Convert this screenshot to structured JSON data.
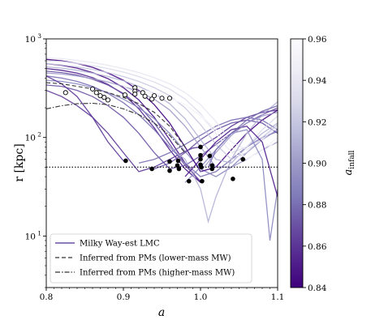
{
  "chart_data": {
    "type": "line",
    "xlabel": "a",
    "ylabel": "r [kpc]",
    "colorbar_label": "a_infall",
    "colorbar_label_main": "a",
    "colorbar_label_sub": "infall",
    "xlim": [
      0.8,
      1.1
    ],
    "ylim": [
      3,
      1000
    ],
    "yscale": "log",
    "x_ticks": [
      0.8,
      0.9,
      1.0,
      1.1
    ],
    "x_tick_labels": [
      "0.8",
      "0.9",
      "1.0",
      "1.1"
    ],
    "y_ticks": [
      10,
      100,
      1000
    ],
    "y_tick_labels": [
      "10",
      "10",
      "10"
    ],
    "y_tick_exponents": [
      "1",
      "2",
      "3"
    ],
    "colorbar_range": [
      0.84,
      0.96
    ],
    "colorbar_ticks": [
      0.84,
      0.86,
      0.88,
      0.9,
      0.92,
      0.94,
      0.96
    ],
    "colorbar_tick_labels": [
      "0.84",
      "0.86",
      "0.88",
      "0.90",
      "0.92",
      "0.94",
      "0.96"
    ],
    "colormap": [
      "#3f007d",
      "#54278f",
      "#6a51a3",
      "#807dba",
      "#9e9ac8",
      "#bcbddc",
      "#dadaeb",
      "#efedf5",
      "#fcfbfd"
    ],
    "reference_line_y": 50,
    "legend": {
      "placement": "lower-left",
      "entries": [
        {
          "label": "Milky Way-est LMC",
          "style": "solid",
          "color": "#6a51a3"
        },
        {
          "label": "Inferred from PMs (lower-mass MW)",
          "style": "dashed",
          "color": "#333333"
        },
        {
          "label": "Inferred from PMs (higher-mass MW)",
          "style": "dashdot",
          "color": "#333333"
        }
      ]
    },
    "series": [
      {
        "a_infall": 0.845,
        "x": [
          0.8,
          0.82,
          0.84,
          0.86,
          0.88,
          0.9,
          0.92,
          0.94,
          0.96,
          0.98,
          1.0
        ],
        "y": [
          560,
          540,
          505,
          455,
          395,
          320,
          240,
          160,
          95,
          55,
          35
        ]
      },
      {
        "a_infall": 0.85,
        "x": [
          0.8,
          0.82,
          0.84,
          0.86,
          0.88,
          0.9,
          0.92,
          0.94,
          0.96,
          0.98,
          1.0
        ],
        "y": [
          500,
          480,
          450,
          405,
          345,
          275,
          195,
          125,
          75,
          48,
          35
        ]
      },
      {
        "a_infall": 0.86,
        "x": [
          0.8,
          0.82,
          0.84,
          0.86,
          0.88,
          0.9,
          0.92,
          0.94,
          0.96,
          0.98,
          0.99,
          1.0,
          1.02,
          1.04,
          1.06,
          1.08,
          1.1
        ],
        "y": [
          300,
          260,
          210,
          160,
          110,
          70,
          45,
          50,
          60,
          72,
          78,
          80,
          100,
          130,
          160,
          180,
          190
        ]
      },
      {
        "a_infall": 0.87,
        "x": [
          0.8,
          0.82,
          0.84,
          0.86,
          0.88,
          0.9,
          0.92,
          0.94,
          0.96,
          0.98,
          1.0
        ],
        "y": [
          470,
          455,
          430,
          390,
          340,
          280,
          210,
          140,
          85,
          52,
          36
        ]
      },
      {
        "a_infall": 0.87,
        "x": [
          0.8,
          0.82,
          0.84,
          0.86,
          0.88,
          0.9,
          0.92,
          0.94,
          0.96,
          0.98,
          1.0,
          1.02,
          1.04,
          1.06,
          1.08,
          1.1
        ],
        "y": [
          340,
          330,
          300,
          260,
          210,
          160,
          110,
          70,
          48,
          52,
          65,
          85,
          110,
          140,
          170,
          200
        ]
      },
      {
        "a_infall": 0.88,
        "x": [
          0.8,
          0.82,
          0.84,
          0.86,
          0.88,
          0.9,
          0.92,
          0.94,
          0.96,
          0.98,
          1.0,
          1.02,
          1.04,
          1.06,
          1.08,
          1.1
        ],
        "y": [
          420,
          400,
          370,
          330,
          280,
          225,
          170,
          120,
          80,
          55,
          40,
          45,
          60,
          80,
          100,
          115
        ]
      },
      {
        "a_infall": 0.89,
        "x": [
          0.8,
          0.82,
          0.84,
          0.86,
          0.88,
          0.9,
          0.92,
          0.94,
          0.96,
          0.98,
          1.0,
          1.02,
          1.04,
          1.06,
          1.08,
          1.1
        ],
        "y": [
          380,
          370,
          350,
          320,
          285,
          245,
          200,
          155,
          110,
          72,
          48,
          40,
          50,
          70,
          95,
          120
        ]
      },
      {
        "a_infall": 0.84,
        "x": [
          0.8,
          0.82,
          0.84,
          0.86,
          0.88,
          0.9,
          0.92,
          0.94,
          0.96,
          0.98,
          1.0,
          1.02,
          1.04,
          1.06,
          1.08,
          1.1
        ],
        "y": [
          620,
          600,
          565,
          515,
          450,
          380,
          300,
          215,
          140,
          80,
          45,
          50,
          75,
          110,
          150,
          190
        ]
      },
      {
        "a_infall": 0.86,
        "x": [
          0.8,
          0.82,
          0.84,
          0.86,
          0.88,
          0.9
        ],
        "y": [
          420,
          350,
          260,
          160,
          90,
          58
        ]
      },
      {
        "a_infall": 0.88,
        "x": [
          0.92,
          0.94,
          0.96,
          0.98,
          1.0,
          1.02,
          1.04,
          1.06,
          1.08,
          1.1
        ],
        "y": [
          55,
          60,
          70,
          85,
          105,
          130,
          150,
          160,
          150,
          120
        ]
      },
      {
        "a_infall": 0.87,
        "x": [
          0.94,
          0.96,
          0.98,
          1.0,
          1.02,
          1.04,
          1.06,
          1.08,
          1.1
        ],
        "y": [
          48,
          55,
          70,
          95,
          120,
          140,
          150,
          140,
          110
        ]
      },
      {
        "a_infall": 0.9,
        "x": [
          0.8,
          0.82,
          0.84,
          0.86,
          0.88,
          0.9,
          0.92,
          0.94,
          0.96,
          0.98,
          1.0,
          1.02,
          1.04,
          1.06,
          1.08,
          1.1
        ],
        "y": [
          450,
          440,
          420,
          395,
          365,
          330,
          290,
          245,
          190,
          130,
          80,
          50,
          50,
          60,
          75,
          90
        ]
      },
      {
        "a_infall": 0.91,
        "x": [
          0.8,
          0.82,
          0.84,
          0.86,
          0.88,
          0.9,
          0.92,
          0.94,
          0.96,
          0.98,
          1.0,
          1.02,
          1.04,
          1.06,
          1.08,
          1.1
        ],
        "y": [
          520,
          505,
          480,
          450,
          415,
          375,
          330,
          280,
          220,
          155,
          95,
          60,
          55,
          80,
          110,
          140
        ]
      },
      {
        "a_infall": 0.92,
        "x": [
          0.8,
          0.82,
          0.84,
          0.86,
          0.88,
          0.9,
          0.92,
          0.94,
          0.96,
          0.98,
          1.0,
          1.02,
          1.04,
          1.06,
          1.08,
          1.1
        ],
        "y": [
          560,
          545,
          520,
          490,
          455,
          415,
          370,
          320,
          265,
          200,
          135,
          85,
          60,
          70,
          100,
          135
        ]
      },
      {
        "a_infall": 0.93,
        "x": [
          0.8,
          0.82,
          0.84,
          0.86,
          0.88,
          0.9,
          0.92,
          0.94,
          0.96,
          0.98,
          1.0,
          1.02,
          1.04,
          1.06,
          1.08,
          1.1
        ],
        "y": [
          600,
          590,
          565,
          535,
          500,
          460,
          415,
          365,
          310,
          245,
          175,
          110,
          70,
          80,
          120,
          165
        ]
      },
      {
        "a_infall": 0.94,
        "x": [
          0.8,
          0.82,
          0.84,
          0.86,
          0.88,
          0.9,
          0.92,
          0.94,
          0.96,
          0.98,
          1.0,
          1.02,
          1.04,
          1.06,
          1.08,
          1.1
        ],
        "y": [
          640,
          630,
          605,
          575,
          540,
          500,
          455,
          405,
          350,
          285,
          215,
          145,
          90,
          75,
          95,
          130
        ]
      },
      {
        "a_infall": 0.95,
        "x": [
          0.9,
          0.92,
          0.94,
          0.96,
          0.98,
          1.0,
          1.02,
          1.04,
          1.06,
          1.08,
          1.1
        ],
        "y": [
          330,
          310,
          285,
          255,
          215,
          165,
          110,
          70,
          60,
          75,
          100
        ]
      },
      {
        "a_infall": 0.955,
        "x": [
          0.92,
          0.94,
          0.96,
          0.98,
          1.0,
          1.02,
          1.04,
          1.06,
          1.08,
          1.1
        ],
        "y": [
          290,
          275,
          250,
          215,
          170,
          120,
          80,
          62,
          70,
          95
        ]
      },
      {
        "a_infall": 0.89,
        "x": [
          0.98,
          1.0,
          1.02,
          1.04,
          1.06,
          1.08,
          1.09,
          1.1
        ],
        "y": [
          35,
          50,
          75,
          110,
          120,
          60,
          9,
          30
        ]
      },
      {
        "a_infall": 0.91,
        "x": [
          0.96,
          0.98,
          1.0,
          1.01,
          1.02,
          1.04,
          1.06,
          1.08,
          1.1
        ],
        "y": [
          80,
          60,
          30,
          14,
          25,
          60,
          110,
          170,
          230
        ]
      },
      {
        "a_infall": 0.85,
        "x": [
          0.98,
          1.0,
          1.02,
          1.04,
          1.06,
          1.08,
          1.1
        ],
        "y": [
          40,
          60,
          90,
          120,
          130,
          90,
          25
        ]
      },
      {
        "a_infall": 0.9,
        "x": [
          1.0,
          1.02,
          1.04,
          1.06,
          1.08,
          1.1
        ],
        "y": [
          45,
          70,
          105,
          140,
          165,
          180
        ]
      },
      {
        "a_infall": 0.88,
        "x": [
          1.01,
          1.02,
          1.04,
          1.06,
          1.08,
          1.1
        ],
        "y": [
          50,
          75,
          110,
          150,
          185,
          210
        ]
      }
    ],
    "ref_dashed": {
      "x": [
        0.8,
        0.82,
        0.84,
        0.86,
        0.88,
        0.9,
        0.92,
        0.94,
        0.96,
        0.98
      ],
      "y": [
        360,
        350,
        330,
        310,
        285,
        255,
        220,
        180,
        130,
        80
      ]
    },
    "ref_dashdot": {
      "x": [
        0.8,
        0.82,
        0.84,
        0.86,
        0.88,
        0.9,
        0.92,
        0.94,
        0.96,
        0.98
      ],
      "y": [
        195,
        210,
        220,
        222,
        215,
        195,
        170,
        140,
        105,
        70
      ]
    },
    "open_markers": [
      {
        "x": 0.825,
        "y": 285
      },
      {
        "x": 0.86,
        "y": 310
      },
      {
        "x": 0.865,
        "y": 285
      },
      {
        "x": 0.87,
        "y": 265
      },
      {
        "x": 0.875,
        "y": 255
      },
      {
        "x": 0.88,
        "y": 240
      },
      {
        "x": 0.902,
        "y": 270
      },
      {
        "x": 0.915,
        "y": 320
      },
      {
        "x": 0.915,
        "y": 295
      },
      {
        "x": 0.915,
        "y": 275
      },
      {
        "x": 0.925,
        "y": 285
      },
      {
        "x": 0.928,
        "y": 262
      },
      {
        "x": 0.937,
        "y": 245
      },
      {
        "x": 0.94,
        "y": 265
      },
      {
        "x": 0.95,
        "y": 250
      },
      {
        "x": 0.96,
        "y": 250
      }
    ],
    "filled_markers": [
      {
        "x": 0.903,
        "y": 58
      },
      {
        "x": 0.937,
        "y": 48
      },
      {
        "x": 0.96,
        "y": 57
      },
      {
        "x": 0.96,
        "y": 46
      },
      {
        "x": 0.97,
        "y": 52
      },
      {
        "x": 0.971,
        "y": 58
      },
      {
        "x": 0.972,
        "y": 48
      },
      {
        "x": 0.985,
        "y": 36
      },
      {
        "x": 1.0,
        "y": 80
      },
      {
        "x": 1.0,
        "y": 66
      },
      {
        "x": 1.0,
        "y": 60
      },
      {
        "x": 1.0,
        "y": 53
      },
      {
        "x": 1.001,
        "y": 50
      },
      {
        "x": 1.002,
        "y": 36
      },
      {
        "x": 1.012,
        "y": 65
      },
      {
        "x": 1.015,
        "y": 52
      },
      {
        "x": 1.015,
        "y": 48
      },
      {
        "x": 1.042,
        "y": 38
      },
      {
        "x": 1.055,
        "y": 60
      }
    ]
  }
}
